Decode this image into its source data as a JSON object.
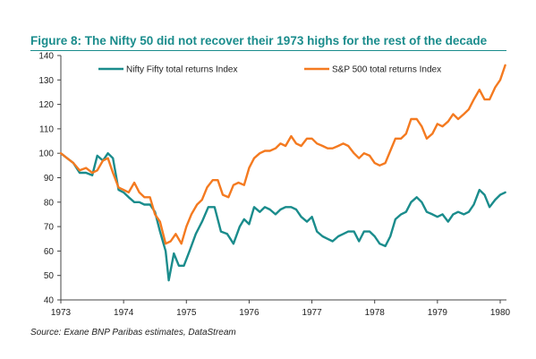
{
  "title": "Figure 8: The Nifty 50 did not recover their 1973 highs for the rest of the decade",
  "source": "Source: Exane BNP Paribas estimates, DataStream",
  "chart_data": {
    "type": "line",
    "title": "Figure 8: The Nifty 50 did not recover their 1973 highs for the rest of the decade",
    "xlabel": "",
    "ylabel": "",
    "xlim": [
      1973,
      1980.1
    ],
    "ylim": [
      40,
      140
    ],
    "x_ticks": [
      1973,
      1974,
      1975,
      1976,
      1977,
      1978,
      1979,
      1980
    ],
    "y_ticks": [
      40,
      50,
      60,
      70,
      80,
      90,
      100,
      110,
      120,
      130,
      140
    ],
    "grid": false,
    "legend": "top",
    "series": [
      {
        "name": "Nifty Fifty total returns Index",
        "color": "#1a8c8c",
        "points": [
          [
            1973.0,
            100
          ],
          [
            1973.1,
            98
          ],
          [
            1973.2,
            96
          ],
          [
            1973.3,
            92
          ],
          [
            1973.4,
            92
          ],
          [
            1973.5,
            91
          ],
          [
            1973.58,
            99
          ],
          [
            1973.67,
            97
          ],
          [
            1973.75,
            100
          ],
          [
            1973.83,
            98
          ],
          [
            1973.92,
            85
          ],
          [
            1974.0,
            84
          ],
          [
            1974.08,
            82
          ],
          [
            1974.17,
            80
          ],
          [
            1974.25,
            80
          ],
          [
            1974.33,
            79
          ],
          [
            1974.42,
            79
          ],
          [
            1974.5,
            76
          ],
          [
            1974.58,
            68
          ],
          [
            1974.67,
            60
          ],
          [
            1974.72,
            48
          ],
          [
            1974.8,
            59
          ],
          [
            1974.88,
            54
          ],
          [
            1974.96,
            54
          ],
          [
            1975.05,
            60
          ],
          [
            1975.15,
            67
          ],
          [
            1975.25,
            72
          ],
          [
            1975.35,
            78
          ],
          [
            1975.45,
            78
          ],
          [
            1975.55,
            68
          ],
          [
            1975.65,
            67
          ],
          [
            1975.75,
            63
          ],
          [
            1975.85,
            70
          ],
          [
            1975.92,
            73
          ],
          [
            1976.0,
            71
          ],
          [
            1976.08,
            78
          ],
          [
            1976.17,
            76
          ],
          [
            1976.25,
            78
          ],
          [
            1976.33,
            77
          ],
          [
            1976.42,
            75
          ],
          [
            1976.5,
            77
          ],
          [
            1976.58,
            78
          ],
          [
            1976.67,
            78
          ],
          [
            1976.75,
            77
          ],
          [
            1976.83,
            74
          ],
          [
            1976.92,
            72
          ],
          [
            1977.0,
            74
          ],
          [
            1977.08,
            68
          ],
          [
            1977.17,
            66
          ],
          [
            1977.25,
            65
          ],
          [
            1977.33,
            64
          ],
          [
            1977.42,
            66
          ],
          [
            1977.5,
            67
          ],
          [
            1977.58,
            68
          ],
          [
            1977.67,
            68
          ],
          [
            1977.75,
            64
          ],
          [
            1977.83,
            68
          ],
          [
            1977.92,
            68
          ],
          [
            1978.0,
            66
          ],
          [
            1978.08,
            63
          ],
          [
            1978.17,
            62
          ],
          [
            1978.25,
            66
          ],
          [
            1978.33,
            73
          ],
          [
            1978.42,
            75
          ],
          [
            1978.5,
            76
          ],
          [
            1978.58,
            80
          ],
          [
            1978.67,
            82
          ],
          [
            1978.75,
            80
          ],
          [
            1978.83,
            76
          ],
          [
            1978.92,
            75
          ],
          [
            1979.0,
            74
          ],
          [
            1979.08,
            75
          ],
          [
            1979.17,
            72
          ],
          [
            1979.25,
            75
          ],
          [
            1979.33,
            76
          ],
          [
            1979.42,
            75
          ],
          [
            1979.5,
            76
          ],
          [
            1979.58,
            79
          ],
          [
            1979.67,
            85
          ],
          [
            1979.75,
            83
          ],
          [
            1979.83,
            78
          ],
          [
            1979.92,
            81
          ],
          [
            1980.0,
            83
          ],
          [
            1980.08,
            84
          ]
        ]
      },
      {
        "name": "S&P 500 total returns Index",
        "color": "#f47a20",
        "points": [
          [
            1973.0,
            100
          ],
          [
            1973.1,
            98
          ],
          [
            1973.2,
            96
          ],
          [
            1973.3,
            93
          ],
          [
            1973.4,
            94
          ],
          [
            1973.5,
            92
          ],
          [
            1973.58,
            93
          ],
          [
            1973.67,
            97
          ],
          [
            1973.75,
            98
          ],
          [
            1973.83,
            92
          ],
          [
            1973.92,
            86
          ],
          [
            1974.0,
            85
          ],
          [
            1974.08,
            84
          ],
          [
            1974.17,
            88
          ],
          [
            1974.25,
            84
          ],
          [
            1974.33,
            82
          ],
          [
            1974.42,
            82
          ],
          [
            1974.5,
            75
          ],
          [
            1974.58,
            72
          ],
          [
            1974.67,
            63
          ],
          [
            1974.75,
            64
          ],
          [
            1974.83,
            67
          ],
          [
            1974.92,
            63
          ],
          [
            1975.0,
            70
          ],
          [
            1975.08,
            75
          ],
          [
            1975.17,
            79
          ],
          [
            1975.25,
            81
          ],
          [
            1975.33,
            86
          ],
          [
            1975.42,
            89
          ],
          [
            1975.5,
            89
          ],
          [
            1975.58,
            83
          ],
          [
            1975.67,
            82
          ],
          [
            1975.75,
            87
          ],
          [
            1975.83,
            88
          ],
          [
            1975.92,
            87
          ],
          [
            1976.0,
            94
          ],
          [
            1976.08,
            98
          ],
          [
            1976.17,
            100
          ],
          [
            1976.25,
            101
          ],
          [
            1976.33,
            101
          ],
          [
            1976.42,
            102
          ],
          [
            1976.5,
            104
          ],
          [
            1976.58,
            103
          ],
          [
            1976.67,
            107
          ],
          [
            1976.75,
            104
          ],
          [
            1976.83,
            103
          ],
          [
            1976.92,
            106
          ],
          [
            1977.0,
            106
          ],
          [
            1977.08,
            104
          ],
          [
            1977.17,
            103
          ],
          [
            1977.25,
            102
          ],
          [
            1977.33,
            102
          ],
          [
            1977.42,
            103
          ],
          [
            1977.5,
            104
          ],
          [
            1977.58,
            103
          ],
          [
            1977.67,
            100
          ],
          [
            1977.75,
            98
          ],
          [
            1977.83,
            100
          ],
          [
            1977.92,
            99
          ],
          [
            1978.0,
            96
          ],
          [
            1978.08,
            95
          ],
          [
            1978.17,
            96
          ],
          [
            1978.25,
            101
          ],
          [
            1978.33,
            106
          ],
          [
            1978.42,
            106
          ],
          [
            1978.5,
            108
          ],
          [
            1978.58,
            114
          ],
          [
            1978.67,
            114
          ],
          [
            1978.75,
            111
          ],
          [
            1978.83,
            106
          ],
          [
            1978.92,
            108
          ],
          [
            1979.0,
            112
          ],
          [
            1979.08,
            111
          ],
          [
            1979.17,
            113
          ],
          [
            1979.25,
            116
          ],
          [
            1979.33,
            114
          ],
          [
            1979.42,
            116
          ],
          [
            1979.5,
            118
          ],
          [
            1979.58,
            122
          ],
          [
            1979.67,
            126
          ],
          [
            1979.75,
            122
          ],
          [
            1979.83,
            122
          ],
          [
            1979.92,
            127
          ],
          [
            1980.0,
            130
          ],
          [
            1980.08,
            136
          ]
        ]
      }
    ]
  }
}
